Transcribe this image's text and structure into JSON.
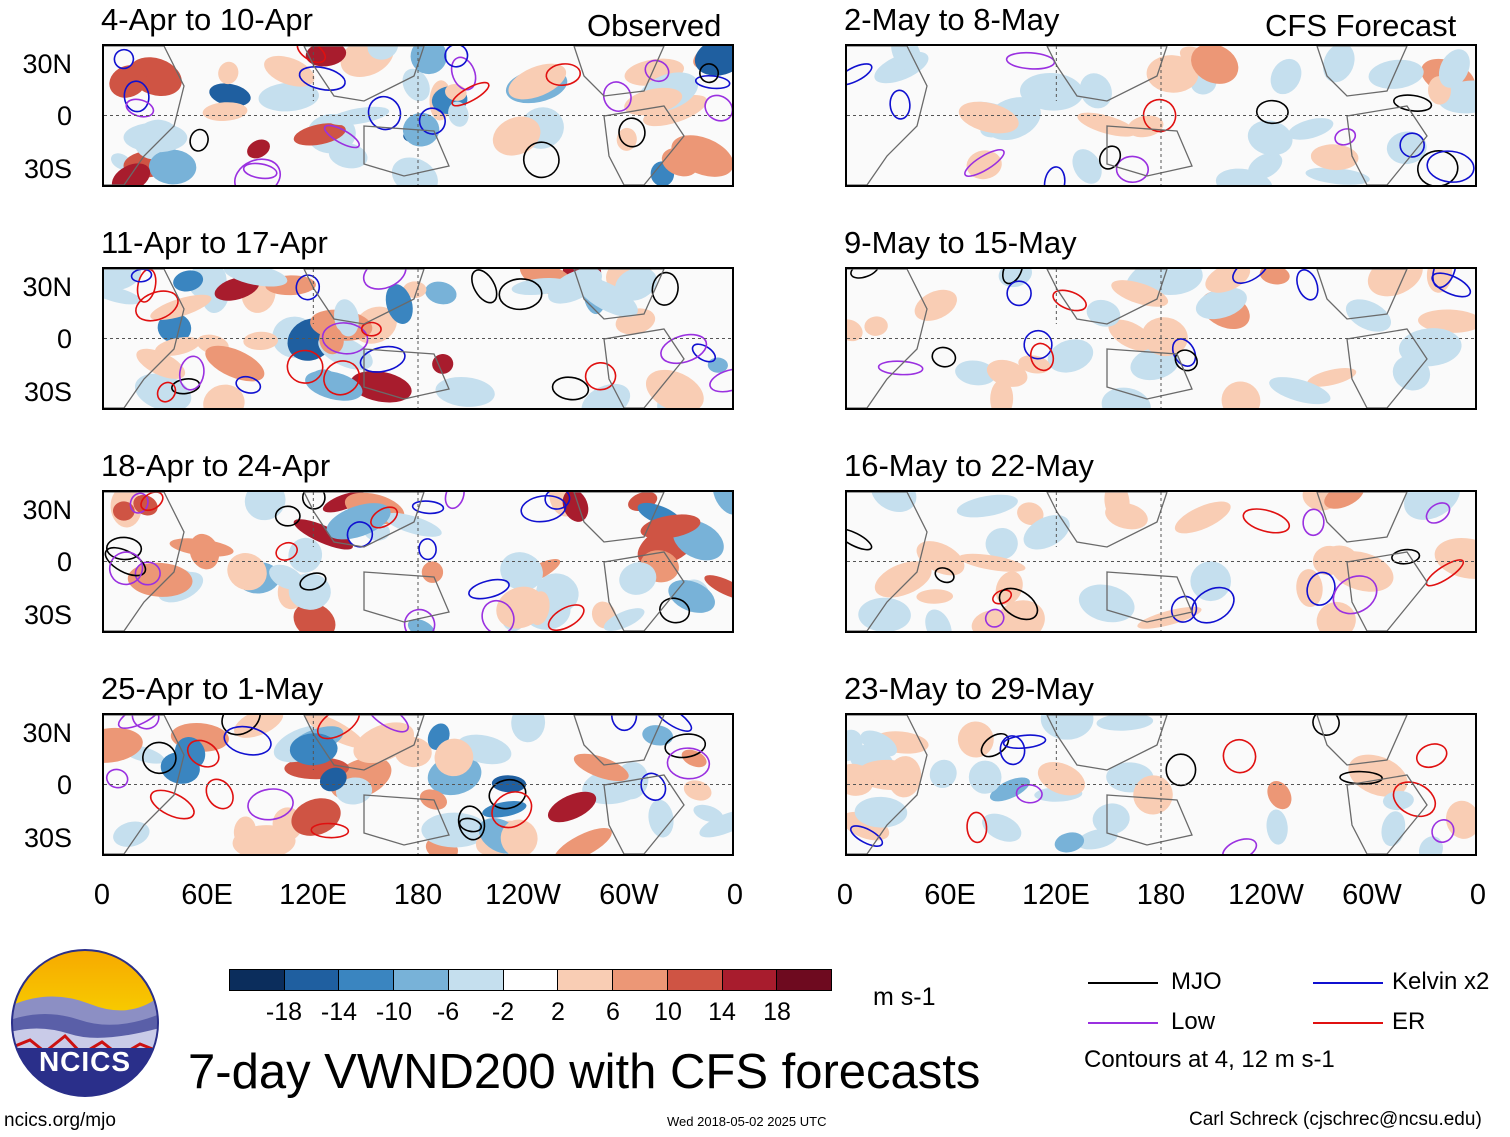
{
  "figure_title": "7-day VWND200 with CFS forecasts",
  "observed_label": "Observed",
  "forecast_label": "CFS Forecast",
  "panels_observed": [
    "4-Apr to 10-Apr",
    "11-Apr to 17-Apr",
    "18-Apr to 24-Apr",
    "25-Apr to 1-May"
  ],
  "panels_forecast": [
    "2-May to 8-May",
    "9-May to 15-May",
    "16-May to 22-May",
    "23-May to 29-May"
  ],
  "lat_labels": [
    "30N",
    "0",
    "30S"
  ],
  "lon_labels": [
    "0",
    "60E",
    "120E",
    "180",
    "120W",
    "60W",
    "0"
  ],
  "colorbar": {
    "ticks": [
      "-18",
      "-14",
      "-10",
      "-6",
      "-2",
      "2",
      "6",
      "10",
      "14",
      "18"
    ],
    "colors": [
      "#0b2d5c",
      "#1f5fa0",
      "#3a85c0",
      "#78b2d8",
      "#c5dfee",
      "#ffffff",
      "#f9cdb4",
      "#ec9776",
      "#cf5444",
      "#a81c2d",
      "#6e0a1f"
    ],
    "units": "m s-1"
  },
  "legend": {
    "items": [
      {
        "label": "MJO",
        "color": "#000000"
      },
      {
        "label": "Kelvin x2",
        "color": "#1010d0"
      },
      {
        "label": "Low",
        "color": "#9a30e0"
      },
      {
        "label": "ER",
        "color": "#e01010"
      }
    ],
    "note": "Contours at 4, 12 m s-1"
  },
  "logo_text": "NCICS",
  "url": "ncics.org/mjo",
  "timestamp": "Wed 2018-05-02 2025 UTC",
  "credit": "Carl Schreck (cjschrec@ncsu.edu)"
}
